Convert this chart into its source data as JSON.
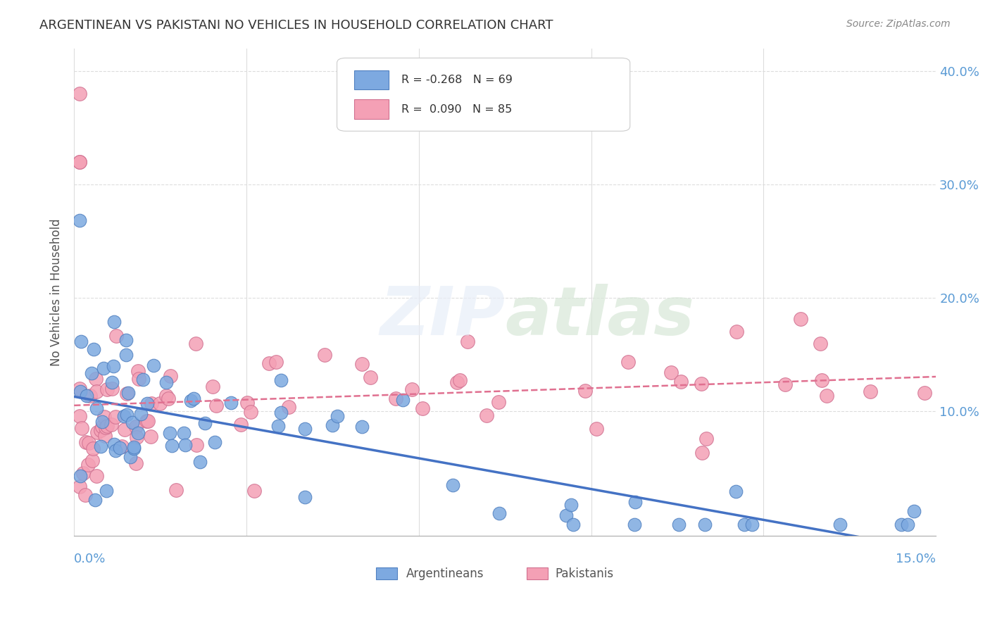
{
  "title": "ARGENTINEAN VS PAKISTANI NO VEHICLES IN HOUSEHOLD CORRELATION CHART",
  "source": "Source: ZipAtlas.com",
  "ylabel": "No Vehicles in Household",
  "xlim": [
    0.0,
    0.15
  ],
  "ylim": [
    -0.01,
    0.42
  ],
  "argentina_color": "#7da9e0",
  "pakistan_color": "#f4a0b5",
  "argentina_edge_color": "#5080c0",
  "pakistan_edge_color": "#d07090",
  "argentina_line_color": "#4472c4",
  "pakistan_line_color": "#e07090",
  "axis_label_color": "#5b9bd5",
  "grid_color": "#dddddd",
  "legend_r_arg": "R = -0.268",
  "legend_n_arg": "N = 69",
  "legend_r_pak": "R =  0.090",
  "legend_n_pak": "N = 85",
  "legend_label_arg": "Argentineans",
  "legend_label_pak": "Pakistanis"
}
